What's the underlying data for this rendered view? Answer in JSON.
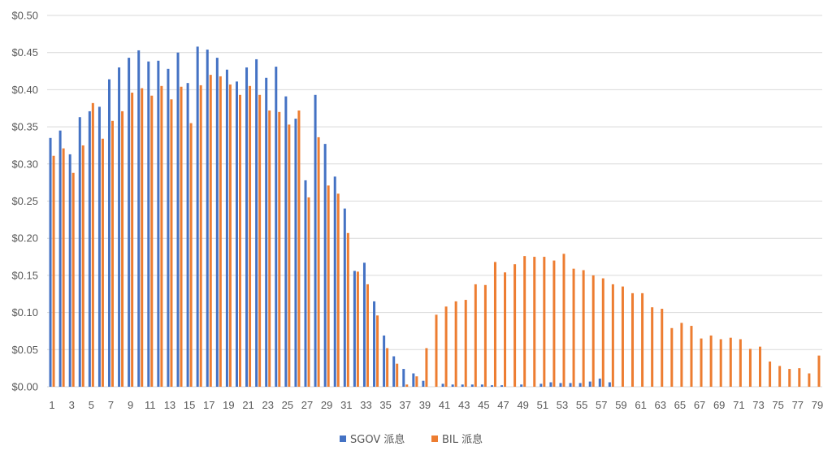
{
  "chart_data": {
    "type": "bar",
    "title": "",
    "xlabel": "",
    "ylabel": "",
    "ylim": [
      0,
      0.5
    ],
    "ytick_step": 0.05,
    "y_tick_labels": [
      "$0.00",
      "$0.05",
      "$0.10",
      "$0.15",
      "$0.20",
      "$0.25",
      "$0.30",
      "$0.35",
      "$0.40",
      "$0.45",
      "$0.50"
    ],
    "categories": [
      1,
      2,
      3,
      4,
      5,
      6,
      7,
      8,
      9,
      10,
      11,
      12,
      13,
      14,
      15,
      16,
      17,
      18,
      19,
      20,
      21,
      22,
      23,
      24,
      25,
      26,
      27,
      28,
      29,
      30,
      31,
      32,
      33,
      34,
      35,
      36,
      37,
      38,
      39,
      40,
      41,
      42,
      43,
      44,
      45,
      46,
      47,
      48,
      49,
      50,
      51,
      52,
      53,
      54,
      55,
      56,
      57,
      58,
      59,
      60,
      61,
      62,
      63,
      64,
      65,
      66,
      67,
      68,
      69,
      70,
      71,
      72,
      73,
      74,
      75,
      76,
      77,
      78,
      79
    ],
    "x_tick_labels": [
      "1",
      "3",
      "5",
      "7",
      "9",
      "11",
      "13",
      "15",
      "17",
      "19",
      "21",
      "23",
      "25",
      "27",
      "29",
      "31",
      "33",
      "35",
      "37",
      "39",
      "41",
      "43",
      "45",
      "47",
      "49",
      "51",
      "53",
      "55",
      "57",
      "59",
      "61",
      "63",
      "65",
      "67",
      "69",
      "71",
      "73",
      "75",
      "77",
      "79"
    ],
    "grid": true,
    "legend_position": "bottom",
    "series": [
      {
        "name": "SGOV 派息",
        "color": "#4472C4",
        "values": [
          0.335,
          0.345,
          0.313,
          0.363,
          0.371,
          0.377,
          0.414,
          0.43,
          0.443,
          0.453,
          0.438,
          0.439,
          0.428,
          0.45,
          0.409,
          0.458,
          0.454,
          0.443,
          0.427,
          0.411,
          0.43,
          0.441,
          0.416,
          0.431,
          0.391,
          0.361,
          0.278,
          0.393,
          0.327,
          0.283,
          0.24,
          0.156,
          0.167,
          0.115,
          0.069,
          0.041,
          0.024,
          0.018,
          0.008,
          0.0,
          0.004,
          0.003,
          0.003,
          0.003,
          0.003,
          0.002,
          0.002,
          0.0,
          0.003,
          0.0,
          0.004,
          0.006,
          0.005,
          0.005,
          0.005,
          0.007,
          0.011,
          0.006,
          0.0,
          0.0,
          0.0,
          0.0,
          0.0,
          0.0,
          0.0,
          0.0,
          0.0,
          0.0,
          0.0,
          0.0,
          0.0,
          0.0,
          0.0,
          0.0,
          0.0,
          0.0,
          0.0,
          0.0,
          0.0
        ]
      },
      {
        "name": "BIL 派息",
        "color": "#ED7D31",
        "values": [
          0.311,
          0.321,
          0.288,
          0.325,
          0.382,
          0.334,
          0.358,
          0.371,
          0.396,
          0.402,
          0.392,
          0.405,
          0.387,
          0.404,
          0.355,
          0.406,
          0.42,
          0.418,
          0.407,
          0.393,
          0.405,
          0.393,
          0.372,
          0.37,
          0.353,
          0.372,
          0.255,
          0.336,
          0.271,
          0.26,
          0.207,
          0.155,
          0.138,
          0.096,
          0.052,
          0.031,
          0.003,
          0.014,
          0.052,
          0.097,
          0.108,
          0.115,
          0.117,
          0.138,
          0.137,
          0.168,
          0.154,
          0.165,
          0.176,
          0.175,
          0.175,
          0.17,
          0.179,
          0.159,
          0.157,
          0.15,
          0.146,
          0.138,
          0.135,
          0.126,
          0.126,
          0.107,
          0.105,
          0.079,
          0.086,
          0.082,
          0.065,
          0.069,
          0.064,
          0.066,
          0.064,
          0.051,
          0.054,
          0.034,
          0.028,
          0.024,
          0.025,
          0.018,
          0.042
        ]
      }
    ]
  }
}
